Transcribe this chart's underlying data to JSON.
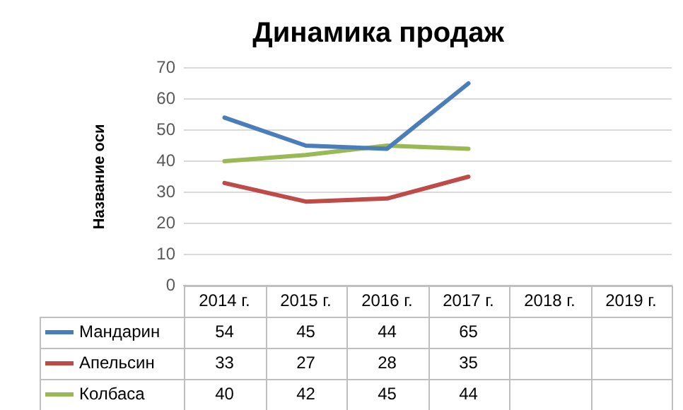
{
  "chart_data": {
    "type": "line",
    "title": "Динамика продаж",
    "ylabel": "Название оси",
    "categories": [
      "2014 г.",
      "2015 г.",
      "2016 г.",
      "2017 г.",
      "2018 г.",
      "2019 г."
    ],
    "series": [
      {
        "name": "Мандарин",
        "color": "#4a7ebb",
        "values": [
          54,
          45,
          44,
          65,
          null,
          null
        ]
      },
      {
        "name": "Апельсин",
        "color": "#be4b48",
        "values": [
          33,
          27,
          28,
          35,
          null,
          null
        ]
      },
      {
        "name": "Колбаса",
        "color": "#98b954",
        "values": [
          40,
          42,
          45,
          44,
          null,
          null
        ]
      }
    ],
    "ylim": [
      0,
      70
    ],
    "yticks": [
      0,
      10,
      20,
      30,
      40,
      50,
      60,
      70
    ],
    "grid": "y",
    "legend": "bottom left",
    "data_labels": true,
    "marker": "none",
    "line_style": "solid"
  }
}
